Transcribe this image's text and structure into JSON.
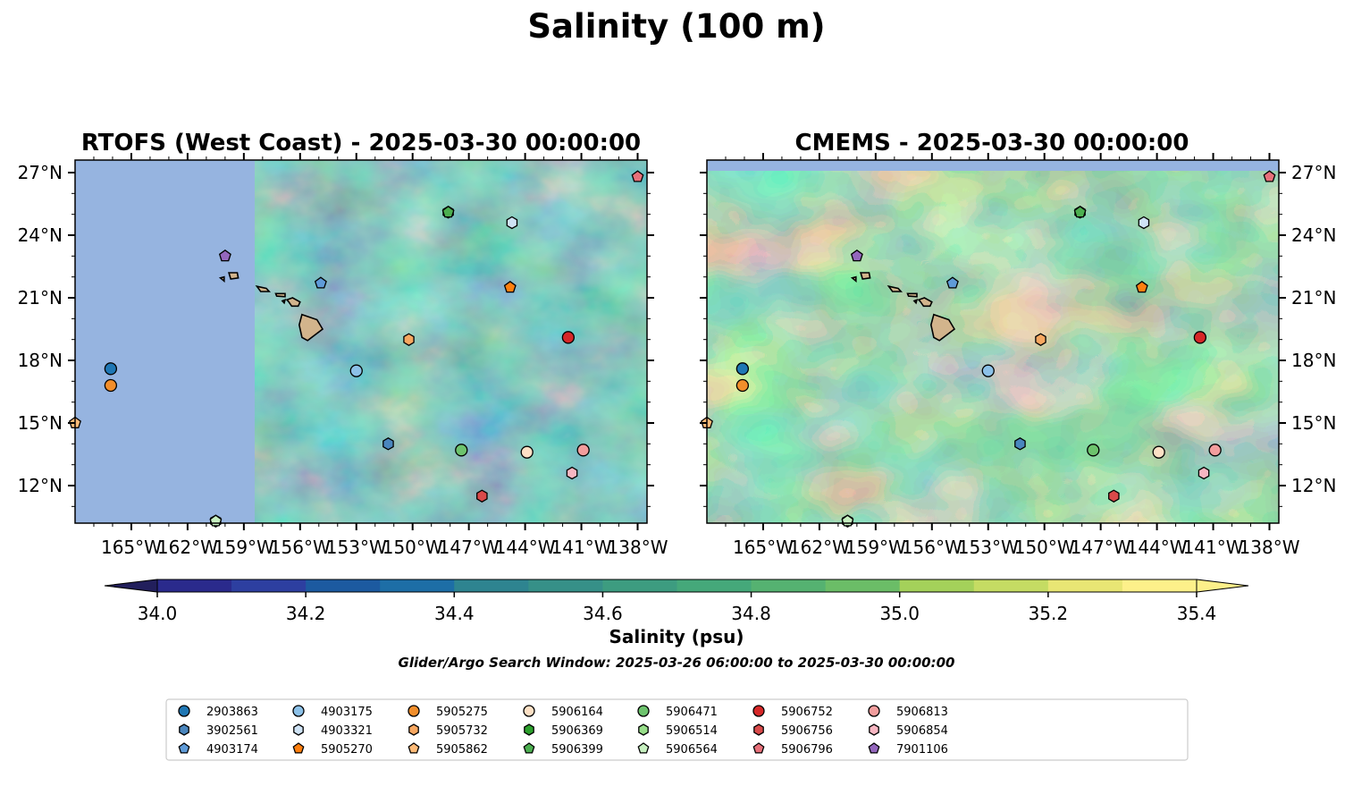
{
  "suptitle": "Salinity (100 m)",
  "colors": {
    "land_mask": "#96b4e0",
    "land": "#d2b48c",
    "background_field": "#4fae86",
    "colormap": [
      "#232063",
      "#2a2a8c",
      "#2d3fa0",
      "#1c5aa0",
      "#1d6ea6",
      "#26799a",
      "#2e8490",
      "#369088",
      "#3d9c80",
      "#45a87a",
      "#55b271",
      "#6bbd67",
      "#84c65d",
      "#a4d15a",
      "#c5dc63",
      "#e8e674",
      "#fdf08a"
    ]
  },
  "chart_data": [
    {
      "type": "heatmap",
      "title": "RTOFS (West Coast) - 2025-03-30 00:00:00",
      "xlim": [
        -168,
        -137.5
      ],
      "ylim": [
        10.2,
        27.6
      ],
      "xticks": [
        "165°W",
        "162°W",
        "159°W",
        "156°W",
        "153°W",
        "150°W",
        "147°W",
        "144°W",
        "141°W",
        "138°W"
      ],
      "yticks": [
        "27°N",
        "24°N",
        "21°N",
        "18°N",
        "15°N",
        "12°N"
      ],
      "ytick_side": "left",
      "model_domain_west_edge_lon": -158.4
    },
    {
      "type": "heatmap",
      "title": "CMEMS - 2025-03-30 00:00:00",
      "xlim": [
        -168,
        -137.5
      ],
      "ylim": [
        10.2,
        27.6
      ],
      "xticks": [
        "165°W",
        "162°W",
        "159°W",
        "156°W",
        "153°W",
        "150°W",
        "147°W",
        "144°W",
        "141°W",
        "138°W"
      ],
      "yticks": [
        "27°N",
        "24°N",
        "21°N",
        "18°N",
        "15°N",
        "12°N"
      ],
      "ytick_side": "right",
      "model_domain_north_edge_lat": 27.1
    }
  ],
  "colorbar": {
    "label": "Salinity (psu)",
    "min": 34.0,
    "max": 35.4,
    "step": 0.1,
    "ticks": [
      "34.0",
      "34.2",
      "34.4",
      "34.6",
      "34.8",
      "35.0",
      "35.2",
      "35.4"
    ],
    "extend": "both"
  },
  "search_window": "Glider/Argo Search Window: 2025-03-26 06:00:00 to 2025-03-30 00:00:00",
  "floats": [
    {
      "id": "2903863",
      "marker": "circle",
      "color": "#1f77b4",
      "lon": -166.1,
      "lat": 17.6
    },
    {
      "id": "3902561",
      "marker": "hexagon",
      "color": "#4a86be",
      "lon": -151.3,
      "lat": 14.0
    },
    {
      "id": "4903174",
      "marker": "pentagon",
      "color": "#5f9bd8",
      "lon": -154.9,
      "lat": 21.7
    },
    {
      "id": "4903175",
      "marker": "circle",
      "color": "#8cc1e8",
      "lon": -153.0,
      "lat": 17.5
    },
    {
      "id": "4903321",
      "marker": "hexagon",
      "color": "#cfe3f5",
      "lon": -144.7,
      "lat": 24.6
    },
    {
      "id": "5905270",
      "marker": "pentagon",
      "color": "#ff7f0e",
      "lon": -144.8,
      "lat": 21.5
    },
    {
      "id": "5905275",
      "marker": "circle",
      "color": "#f28e2b",
      "lon": -166.1,
      "lat": 16.8
    },
    {
      "id": "5905732",
      "marker": "hexagon",
      "color": "#f7a760",
      "lon": -150.2,
      "lat": 19.0
    },
    {
      "id": "5905862",
      "marker": "pentagon",
      "color": "#ffbb78",
      "lon": -168.0,
      "lat": 15.0
    },
    {
      "id": "5906164",
      "marker": "circle",
      "color": "#fde0c5",
      "lon": -143.9,
      "lat": 13.6
    },
    {
      "id": "5906369",
      "marker": "hexagon",
      "color": "#2ca02c",
      "lon": -148.1,
      "lat": 25.1
    },
    {
      "id": "5906399",
      "marker": "pentagon",
      "color": "#4caf50",
      "lon": -148.1,
      "lat": 25.1
    },
    {
      "id": "5906471",
      "marker": "circle",
      "color": "#6dc36d",
      "lon": -147.4,
      "lat": 13.7
    },
    {
      "id": "5906514",
      "marker": "hexagon",
      "color": "#98df8a",
      "lon": -160.5,
      "lat": 10.3
    },
    {
      "id": "5906564",
      "marker": "pentagon",
      "color": "#c7f0c0",
      "lon": -160.5,
      "lat": 10.3
    },
    {
      "id": "5906752",
      "marker": "circle",
      "color": "#d62728",
      "lon": -141.7,
      "lat": 19.1
    },
    {
      "id": "5906756",
      "marker": "hexagon",
      "color": "#d94a4a",
      "lon": -146.3,
      "lat": 11.5
    },
    {
      "id": "5906796",
      "marker": "pentagon",
      "color": "#e8707a",
      "lon": -138.0,
      "lat": 26.8
    },
    {
      "id": "5906813",
      "marker": "circle",
      "color": "#f29d9d",
      "lon": -140.9,
      "lat": 13.7
    },
    {
      "id": "5906854",
      "marker": "hexagon",
      "color": "#f7b6c2",
      "lon": -141.5,
      "lat": 12.6
    },
    {
      "id": "7901106",
      "marker": "pentagon",
      "color": "#9467bd",
      "lon": -160.0,
      "lat": 23.0
    }
  ],
  "legend": {
    "columns": 9,
    "entries": [
      "2903863",
      "3902561",
      "4903174",
      "4903175",
      "4903321",
      "5905270",
      "5905275",
      "5905732",
      "5905862",
      "5906164",
      "5906369",
      "5906399",
      "5906471",
      "5906514",
      "5906564",
      "5906752",
      "5906756",
      "5906796",
      "5906813",
      "5906854",
      "7901106"
    ]
  }
}
